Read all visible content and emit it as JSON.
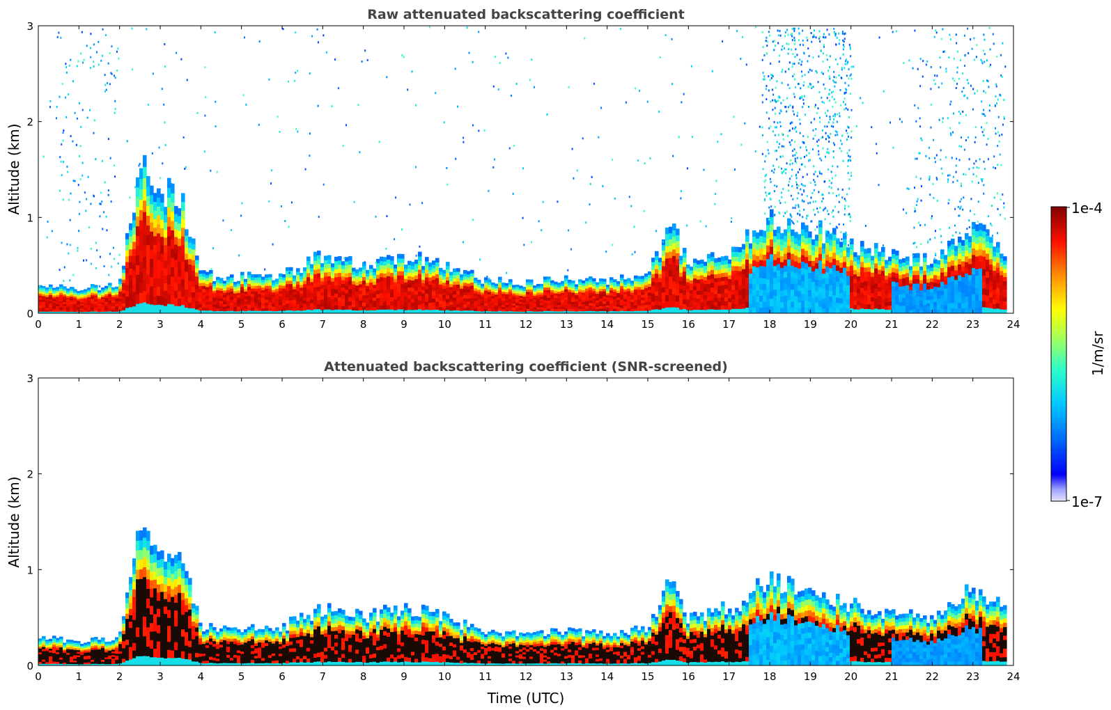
{
  "chart_data": [
    {
      "type": "heatmap",
      "title": "Raw attenuated backscattering coefficient",
      "xlabel": "",
      "ylabel": "Altitude (km)",
      "xlim": [
        0,
        24
      ],
      "ylim": [
        0,
        3
      ],
      "xticks": [
        "0",
        "1",
        "2",
        "3",
        "4",
        "5",
        "6",
        "7",
        "8",
        "9",
        "10",
        "11",
        "12",
        "13",
        "14",
        "15",
        "16",
        "17",
        "18",
        "19",
        "20",
        "21",
        "22",
        "23",
        "24"
      ],
      "yticks": [
        "0",
        "1",
        "2",
        "3"
      ],
      "colorscale": "jet",
      "boundary_layer_top_km": [
        {
          "x": 0,
          "y": 0.28
        },
        {
          "x": 1,
          "y": 0.26
        },
        {
          "x": 2,
          "y": 0.3
        },
        {
          "x": 2.5,
          "y": 1.6
        },
        {
          "x": 3,
          "y": 1.3
        },
        {
          "x": 3.5,
          "y": 1.2
        },
        {
          "x": 4,
          "y": 0.4
        },
        {
          "x": 5,
          "y": 0.38
        },
        {
          "x": 6,
          "y": 0.4
        },
        {
          "x": 7,
          "y": 0.6
        },
        {
          "x": 8,
          "y": 0.5
        },
        {
          "x": 9,
          "y": 0.6
        },
        {
          "x": 10,
          "y": 0.5
        },
        {
          "x": 11,
          "y": 0.35
        },
        {
          "x": 12,
          "y": 0.32
        },
        {
          "x": 13,
          "y": 0.35
        },
        {
          "x": 14,
          "y": 0.33
        },
        {
          "x": 15,
          "y": 0.4
        },
        {
          "x": 15.6,
          "y": 0.9
        },
        {
          "x": 16,
          "y": 0.5
        },
        {
          "x": 17,
          "y": 0.6
        },
        {
          "x": 18,
          "y": 1.0
        },
        {
          "x": 19,
          "y": 0.9
        },
        {
          "x": 20,
          "y": 0.7
        },
        {
          "x": 21,
          "y": 0.6
        },
        {
          "x": 22,
          "y": 0.55
        },
        {
          "x": 23,
          "y": 0.9
        },
        {
          "x": 23.8,
          "y": 0.65
        }
      ]
    },
    {
      "type": "heatmap",
      "title": "Attenuated backscattering coefficient (SNR-screened)",
      "xlabel": "Time (UTC)",
      "ylabel": "Altitude (km)",
      "xlim": [
        0,
        24
      ],
      "ylim": [
        0,
        3
      ],
      "xticks": [
        "0",
        "1",
        "2",
        "3",
        "4",
        "5",
        "6",
        "7",
        "8",
        "9",
        "10",
        "11",
        "12",
        "13",
        "14",
        "15",
        "16",
        "17",
        "18",
        "19",
        "20",
        "21",
        "22",
        "23",
        "24"
      ],
      "yticks": [
        "0",
        "1",
        "2",
        "3"
      ],
      "colorscale": "jet"
    }
  ],
  "colorbar": {
    "label": "1/m/sr",
    "max_label": "1e-4",
    "min_label": "1e-7",
    "scale": "log",
    "range": [
      1e-07,
      0.0001
    ]
  }
}
